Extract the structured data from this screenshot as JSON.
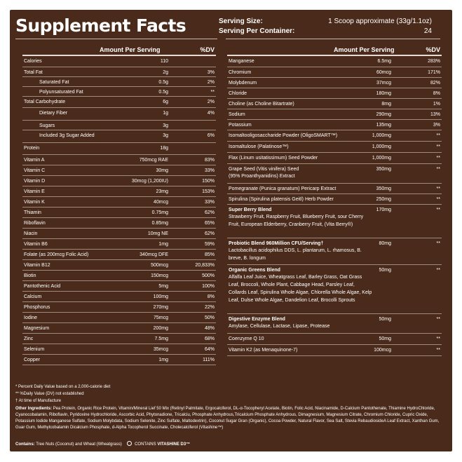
{
  "title": "Supplement Facts",
  "serving": {
    "size_label": "Serving Size:",
    "size_value": "1 Scoop approximate (33g/1.1oz)",
    "container_label": "Serving Per Container:",
    "container_value": "24"
  },
  "headers": {
    "amount": "Amount Per Serving",
    "dv": "%DV"
  },
  "left_rows": [
    {
      "name": "Calories",
      "amount": "110",
      "dv": ""
    },
    {
      "name": "Total Fat",
      "amount": "2g",
      "dv": "3%"
    },
    {
      "name": "Saturated Fat",
      "amount": "0.5g",
      "dv": "2%"
    },
    {
      "name": "Polyunsaturated Fat",
      "amount": "0.5g",
      "dv": "**"
    },
    {
      "name": "Total Carbohydrate",
      "amount": "6g",
      "dv": "2%"
    },
    {
      "name": "Dietary Fiber",
      "amount": "1g",
      "dv": "4%"
    },
    {
      "name": "Sugars",
      "amount": "3g",
      "dv": ""
    },
    {
      "name": "Included 3g Sugar Added",
      "amount": "3g",
      "dv": "6%"
    },
    {
      "name": "Protein",
      "amount": "18g",
      "dv": ""
    },
    {
      "name": "Vitamin A",
      "amount": "750mcg RAE",
      "dv": "83%"
    },
    {
      "name": "Vitamin C",
      "amount": "30mg",
      "dv": "33%"
    },
    {
      "name": "Vitamin D",
      "amount": "30mcg (1,200IU)",
      "dv": "150%"
    },
    {
      "name": "Vitamin E",
      "amount": "23mg",
      "dv": "153%"
    },
    {
      "name": "Vitamin K",
      "amount": "40mcg",
      "dv": "33%"
    },
    {
      "name": "Thiamin",
      "amount": "0.75mg",
      "dv": "62%"
    },
    {
      "name": "Riboflavin",
      "amount": "0.85mg",
      "dv": "65%"
    },
    {
      "name": "Niacin",
      "amount": "10mg NE",
      "dv": "62%"
    },
    {
      "name": "Vitamin B6",
      "amount": "1mg",
      "dv": "59%"
    },
    {
      "name": "Folate (as 200mcg Folic Acid)",
      "amount": "340mcg DFE",
      "dv": "85%"
    },
    {
      "name": "Vitamin B12",
      "amount": "500mcg",
      "dv": "20,833%"
    },
    {
      "name": "Biotin",
      "amount": "150mcg",
      "dv": "500%"
    },
    {
      "name": "Pantothenic Acid",
      "amount": "5mg",
      "dv": "100%"
    },
    {
      "name": "Calcium",
      "amount": "100mg",
      "dv": "8%"
    },
    {
      "name": "Phosphorus",
      "amount": "270mg",
      "dv": "22%"
    },
    {
      "name": "Iodine",
      "amount": "75mcg",
      "dv": "50%"
    },
    {
      "name": "Magnesium",
      "amount": "200mg",
      "dv": "48%"
    },
    {
      "name": "Zinc",
      "amount": "7.5mg",
      "dv": "68%"
    },
    {
      "name": "Selenium",
      "amount": "35mcg",
      "dv": "64%"
    },
    {
      "name": "Copper",
      "amount": "1mg",
      "dv": "111%"
    }
  ],
  "right_rows": [
    {
      "name": "Manganese",
      "amount": "6.5mg",
      "dv": "283%",
      "sub": ""
    },
    {
      "name": "Chromium",
      "amount": "60mcg",
      "dv": "171%",
      "sub": ""
    },
    {
      "name": "Molybdenum",
      "amount": "37mcg",
      "dv": "82%",
      "sub": ""
    },
    {
      "name": "Chloride",
      "amount": "180mg",
      "dv": "8%",
      "sub": ""
    },
    {
      "name": "Choline (as Choline Bitartrate)",
      "amount": "8mg",
      "dv": "1%",
      "sub": ""
    },
    {
      "name": "Sodium",
      "amount": "290mg",
      "dv": "13%",
      "sub": ""
    },
    {
      "name": "Potassium",
      "amount": "135mg",
      "dv": "3%",
      "sub": ""
    },
    {
      "name": "Isomaltooligosaccharide Powder (OligoSMART™)",
      "amount": "1,000mg",
      "dv": "**",
      "sub": ""
    },
    {
      "name": "Isomaltulose (Palatinose™)",
      "amount": "1,000mg",
      "dv": "**",
      "sub": ""
    },
    {
      "name": "Flax (Linum usitatissimum) Seed Powder",
      "amount": "1,000mg",
      "dv": "**",
      "sub": ""
    },
    {
      "name": "Grape Seed (Vitis vinifera) Seed",
      "amount": "350mg",
      "dv": "**",
      "sub": "(95% Proanthyanidins) Extract"
    },
    {
      "name": "Pomegranate (Punica granatum) Pericarp Extract",
      "amount": "350mg",
      "dv": "**",
      "sub": ""
    },
    {
      "name": "Spirulina (Spirulina platensis Geitl) Herb Powder",
      "amount": "250mg",
      "dv": "**",
      "sub": ""
    },
    {
      "name": "Super Berry Blend",
      "amount": "170mg",
      "dv": "**",
      "bold": true,
      "sub": "Strawberry Fruit, Raspberry Fruit, Blueberry Fruit, sour Cherry Fruit, European Elderberry, Cranberry Fruit, (Vita Berry®)"
    },
    {
      "name": "Probiotic Blend 960Million CFU/Serving†",
      "amount": "80mg",
      "dv": "**",
      "bold": true,
      "sub": "Lactobacillus acidophilus DDS, L. plantarum, L. rhamosus, B. breve, B. longum"
    },
    {
      "name": "Organic Greens Blend",
      "amount": "50mg",
      "dv": "**",
      "bold": true,
      "sub": "Alfalfa Leaf Juice, Wheatgrass Leaf, Barley Grass, Oat Grass Leaf, Broccoli, Whole Plant, Cabbage Head, Parsley Leaf, Collards Leaf, Spirulina Whole Algae, Chlorella Whole Algae, Kelp Leaf, Dulse Whole Algae, Dandelion Leaf, Brocolli Sprouts"
    },
    {
      "name": "Digestive Enzyme Blend",
      "amount": "50mg",
      "dv": "**",
      "bold": true,
      "sub": "Amylase, Cellulase, Lactase, Lipase, Protease"
    },
    {
      "name": "Coenzyme Q 10",
      "amount": "50mg",
      "dv": "**",
      "sub": ""
    },
    {
      "name": "Vitamin K2 (as Menaquinone-7)",
      "amount": "100mcg",
      "dv": "**",
      "sub": ""
    }
  ],
  "footnotes": {
    "dv_note": "* Percent Daily Value based on a 2,000-calorie diet",
    "not_established": "** %Daily Value (DV) not established",
    "manufacture": "† At time of Manufacture",
    "other_label": "Other Ingredients:",
    "other_text": "Pea Protein, Organic Rice Protein, Vitamin/Mineral Lief 50 Mix (Retinyl Palmitate, Ergocalciferol, DL-α-Tocopheryl Acetate, Biotin, Folic Acid, Niacinamide, D-Calcium Pantothenate, Thiamine HydroChloride, Cyanocobalamin, Riboflavin, Pyridoxine Hydrochloride, Ascorbic Acid, Phytonadione, Tricalciu, Phosphate Anhydrous,Tricalcium Phosphate Anhydrous, Dimagnesium, Magnesium Citrate, Chromium Chloride, Cupric Oxide, Potassium Iodide Manganese Sulfate, Sodium Molybdata, Sodium Selenite, Zinc Sulfate, Maltodextrin), Coconut Sugar Gran (Organic), Cocoa Powder, Natural Flavor, Sea Salt, Stevia RebaudiosideA Leaf Extract, Xanthan Gum, Guar Gum, Methylcobalamin Dicalcium Phosphate, d-Alpha Tocopherol Succinate, Cholecalciferol (Vitashine™)",
    "contains_label": "Contains:",
    "contains_text": "Tree Nuts (Coconut) and Wheat (Wheatgrass)",
    "contains_logo": "CONTAINS",
    "vitashine": "VITASHINE D3™"
  }
}
